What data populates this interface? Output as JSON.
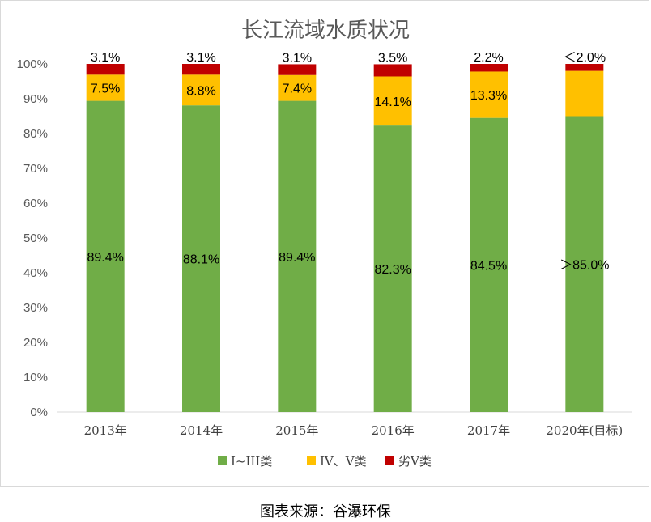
{
  "chart_data": {
    "type": "bar",
    "stacked": true,
    "title": "长江流域水质状况",
    "categories": [
      "2013年",
      "2014年",
      "2015年",
      "2016年",
      "2017年",
      "2020年(目标)"
    ],
    "y_ticks": [
      "0%",
      "10%",
      "20%",
      "30%",
      "40%",
      "50%",
      "60%",
      "70%",
      "80%",
      "90%",
      "100%"
    ],
    "ylim": [
      0,
      100
    ],
    "grid": false,
    "legend_position": "bottom",
    "series": [
      {
        "name": "I~III类",
        "color": "#70ad47",
        "values": [
          89.4,
          88.1,
          89.4,
          82.3,
          84.5,
          85.0
        ],
        "labels": [
          "89.4%",
          "88.1%",
          "89.4%",
          "82.3%",
          "84.5%",
          "＞85.0%"
        ]
      },
      {
        "name": "IV、V类",
        "color": "#ffc000",
        "values": [
          7.5,
          8.8,
          7.4,
          14.1,
          13.3,
          13.0
        ],
        "labels": [
          "7.5%",
          "8.8%",
          "7.4%",
          "14.1%",
          "13.3%",
          ""
        ]
      },
      {
        "name": "劣V类",
        "color": "#c00000",
        "values": [
          3.1,
          3.1,
          3.1,
          3.5,
          2.2,
          2.0
        ],
        "labels": [
          "3.1%",
          "3.1%",
          "3.1%",
          "3.5%",
          "2.2%",
          "＜2.0%"
        ]
      }
    ]
  },
  "source": "图表来源：谷瀑环保"
}
